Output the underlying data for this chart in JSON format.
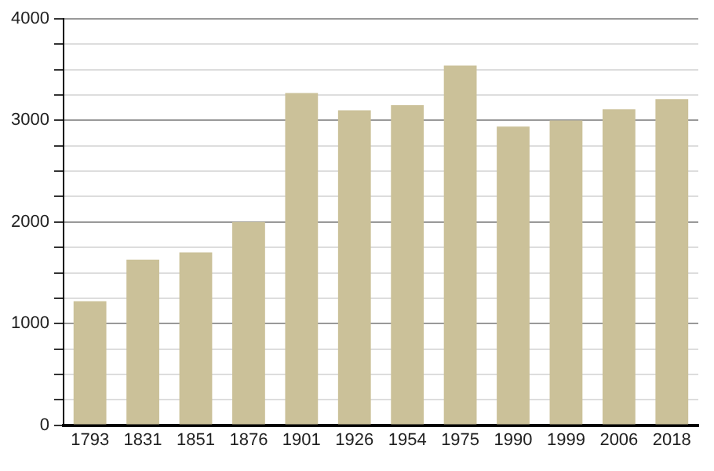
{
  "chart_data": {
    "type": "bar",
    "categories": [
      "1793",
      "1831",
      "1851",
      "1876",
      "1901",
      "1926",
      "1954",
      "1975",
      "1990",
      "1999",
      "2006",
      "2018"
    ],
    "values": [
      1220,
      1630,
      1700,
      2000,
      3270,
      3100,
      3150,
      3540,
      2940,
      3000,
      3110,
      3210
    ],
    "color": "#cbc199",
    "ylim": [
      0,
      4000
    ],
    "yticks": [
      0,
      {
        "value": 250,
        "label": null
      },
      {
        "value": 500,
        "label": null
      },
      {
        "value": 750,
        "label": null
      },
      1000,
      {
        "value": 1250,
        "label": null
      },
      {
        "value": 1500,
        "label": null
      },
      {
        "value": 1750,
        "label": null
      },
      2000,
      {
        "value": 2250,
        "label": null
      },
      {
        "value": 2500,
        "label": null
      },
      {
        "value": 2750,
        "label": null
      },
      3000,
      {
        "value": 3250,
        "label": null
      },
      {
        "value": 3500,
        "label": null
      },
      {
        "value": 3750,
        "label": null
      },
      4000
    ],
    "grid": "y"
  }
}
